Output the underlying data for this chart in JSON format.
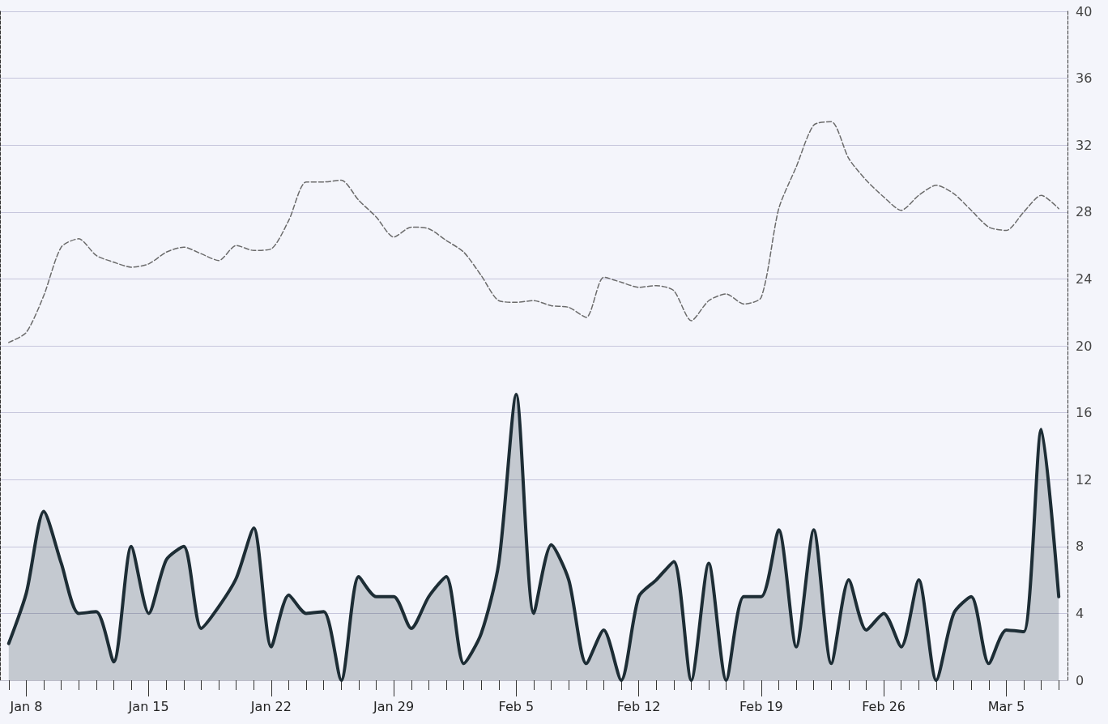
{
  "chart_data": {
    "type": "line",
    "categories": [
      null,
      "Jan 8",
      null,
      null,
      null,
      null,
      null,
      null,
      "Jan 15",
      null,
      null,
      null,
      null,
      null,
      null,
      "Jan 22",
      null,
      null,
      null,
      null,
      null,
      null,
      "Jan 29",
      null,
      null,
      null,
      null,
      null,
      null,
      "Feb 5",
      null,
      null,
      null,
      null,
      null,
      null,
      "Feb 12",
      null,
      null,
      null,
      null,
      null,
      null,
      "Feb 19",
      null,
      null,
      null,
      null,
      null,
      null,
      "Feb 26",
      null,
      null,
      null,
      null,
      null,
      null,
      "Mar 5",
      null,
      null,
      null
    ],
    "series": [
      {
        "type": "area",
        "color": "#1d2d35",
        "line_style": "solid",
        "values": [
          2.2,
          5.2,
          10.1,
          7,
          4,
          4.1,
          1.1,
          8,
          4,
          7.2,
          8,
          3.1,
          4.4,
          6.1,
          9.1,
          2,
          5.1,
          4,
          4.1,
          0,
          6.2,
          5,
          5,
          3.1,
          5,
          6.2,
          1,
          2.8,
          7,
          17.1,
          4,
          8.1,
          6,
          1,
          3,
          0,
          5,
          6,
          7.1,
          0,
          7,
          0,
          5,
          5,
          9,
          2,
          9,
          1,
          6,
          3,
          4,
          2,
          6,
          0,
          4,
          5,
          1,
          3,
          2.9,
          15,
          5
        ]
      },
      {
        "type": "line",
        "color": "#6b6b6b",
        "line_style": "dashed",
        "values": [
          20.2,
          20.8,
          23,
          25.9,
          26.4,
          25.4,
          25,
          24.7,
          24.9,
          25.6,
          25.9,
          25.5,
          25.1,
          26,
          25.7,
          25.8,
          27.5,
          29.8,
          29.8,
          29.9,
          28.7,
          27.7,
          26.5,
          27.1,
          27,
          26.3,
          25.6,
          24.2,
          22.7,
          22.6,
          22.7,
          22.4,
          22.3,
          21.7,
          24.1,
          23.8,
          23.5,
          23.6,
          23.3,
          21.5,
          22.7,
          23.1,
          22.5,
          22.9,
          28.2,
          30.7,
          33.2,
          33.4,
          31.2,
          29.9,
          28.9,
          28.1,
          29,
          29.6,
          29.1,
          28.1,
          27.1,
          26.9,
          28,
          29,
          28.2
        ]
      }
    ],
    "ylim": [
      0,
      40
    ],
    "yticks": [
      0,
      4,
      8,
      12,
      16,
      20,
      24,
      28,
      32,
      36,
      40
    ],
    "grid": "y",
    "marker": "none"
  }
}
